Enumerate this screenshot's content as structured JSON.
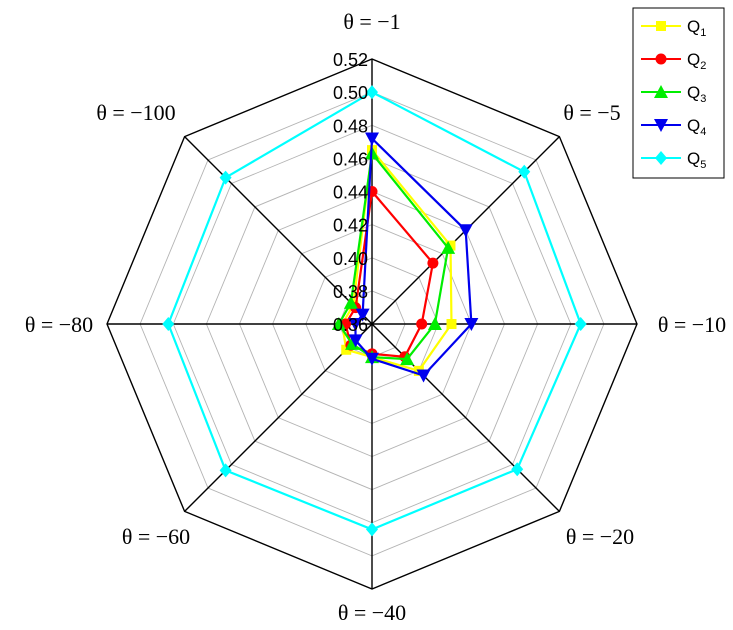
{
  "chart_data": {
    "type": "radar",
    "axes": [
      "θ = −1",
      "θ = −5",
      "θ = −10",
      "θ = −20",
      "θ = −40",
      "θ = −60",
      "θ = −80",
      "θ = −100"
    ],
    "rlim": [
      0.36,
      0.52
    ],
    "rticks": [
      "0.36",
      "0.38",
      "0.40",
      "0.42",
      "0.44",
      "0.46",
      "0.48",
      "0.50",
      "0.52"
    ],
    "grid": true,
    "legend_position": "top-right",
    "series": [
      {
        "name": "Q",
        "sub": "1",
        "color": "#ffff00",
        "marker": "square",
        "values": [
          0.465,
          0.427,
          0.408,
          0.4,
          0.38,
          0.382,
          0.378,
          0.376
        ]
      },
      {
        "name": "Q",
        "sub": "2",
        "color": "#ff0000",
        "marker": "circle",
        "values": [
          0.44,
          0.412,
          0.39,
          0.388,
          0.378,
          0.378,
          0.376,
          0.374
        ]
      },
      {
        "name": "Q",
        "sub": "3",
        "color": "#00ee00",
        "marker": "triangle-up",
        "values": [
          0.463,
          0.425,
          0.398,
          0.39,
          0.38,
          0.377,
          0.38,
          0.378
        ]
      },
      {
        "name": "Q",
        "sub": "4",
        "color": "#0000ee",
        "marker": "triangle-down",
        "values": [
          0.472,
          0.44,
          0.42,
          0.404,
          0.381,
          0.374,
          0.37,
          0.368
        ]
      },
      {
        "name": "Q",
        "sub": "5",
        "color": "#00ffff",
        "marker": "diamond",
        "values": [
          0.5,
          0.49,
          0.486,
          0.484,
          0.484,
          0.485,
          0.483,
          0.485
        ]
      }
    ]
  }
}
